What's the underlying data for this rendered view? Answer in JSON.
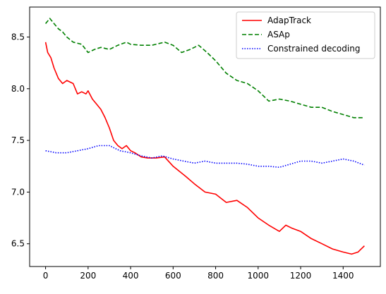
{
  "chart_data": {
    "type": "line",
    "title": "",
    "xlabel": "",
    "ylabel": "",
    "xlim": [
      -75,
      1575
    ],
    "ylim": [
      6.28,
      8.79
    ],
    "xticks": [
      0,
      200,
      400,
      600,
      800,
      1000,
      1200,
      1400
    ],
    "yticks": [
      6.5,
      7.0,
      7.5,
      8.0,
      8.5
    ],
    "xtick_labels": [
      "0",
      "200",
      "400",
      "600",
      "800",
      "1000",
      "1200",
      "1400"
    ],
    "ytick_labels": [
      "6.5",
      "7.0",
      "7.5",
      "8.0",
      "8.5"
    ],
    "grid": false,
    "legend_position": "top-right",
    "series": [
      {
        "name": "AdapTrack",
        "color": "#ff0000",
        "linestyle": "solid",
        "x": [
          0,
          10,
          25,
          40,
          60,
          80,
          100,
          130,
          150,
          170,
          190,
          200,
          220,
          240,
          260,
          280,
          300,
          320,
          340,
          360,
          380,
          400,
          420,
          450,
          480,
          520,
          560,
          600,
          630,
          660,
          700,
          750,
          800,
          850,
          900,
          950,
          1000,
          1050,
          1100,
          1130,
          1160,
          1200,
          1250,
          1300,
          1350,
          1400,
          1440,
          1470,
          1500
        ],
        "y": [
          8.45,
          8.35,
          8.3,
          8.2,
          8.1,
          8.05,
          8.08,
          8.05,
          7.95,
          7.97,
          7.95,
          7.98,
          7.9,
          7.85,
          7.8,
          7.72,
          7.62,
          7.5,
          7.45,
          7.42,
          7.45,
          7.4,
          7.38,
          7.34,
          7.33,
          7.33,
          7.34,
          7.25,
          7.2,
          7.15,
          7.08,
          7.0,
          6.98,
          6.9,
          6.92,
          6.85,
          6.75,
          6.68,
          6.62,
          6.68,
          6.65,
          6.62,
          6.55,
          6.5,
          6.45,
          6.42,
          6.4,
          6.42,
          6.48
        ]
      },
      {
        "name": "ASAp",
        "color": "#008000",
        "linestyle": "dashed",
        "x": [
          0,
          20,
          40,
          60,
          80,
          100,
          130,
          170,
          200,
          230,
          260,
          300,
          340,
          380,
          400,
          450,
          500,
          560,
          600,
          640,
          680,
          720,
          760,
          800,
          850,
          900,
          950,
          1000,
          1050,
          1100,
          1150,
          1200,
          1250,
          1300,
          1350,
          1400,
          1450,
          1500
        ],
        "y": [
          8.63,
          8.68,
          8.63,
          8.58,
          8.55,
          8.5,
          8.45,
          8.43,
          8.35,
          8.38,
          8.4,
          8.38,
          8.42,
          8.45,
          8.43,
          8.42,
          8.42,
          8.45,
          8.42,
          8.35,
          8.38,
          8.42,
          8.35,
          8.27,
          8.15,
          8.08,
          8.05,
          7.98,
          7.88,
          7.9,
          7.88,
          7.85,
          7.82,
          7.82,
          7.78,
          7.75,
          7.72,
          7.72
        ]
      },
      {
        "name": "Constrained decoding",
        "color": "#0000ff",
        "linestyle": "dotted",
        "x": [
          0,
          50,
          100,
          150,
          200,
          250,
          300,
          350,
          400,
          450,
          500,
          550,
          600,
          650,
          700,
          750,
          800,
          850,
          900,
          950,
          1000,
          1050,
          1100,
          1150,
          1200,
          1250,
          1300,
          1350,
          1400,
          1450,
          1500
        ],
        "y": [
          7.4,
          7.38,
          7.38,
          7.4,
          7.42,
          7.45,
          7.45,
          7.4,
          7.38,
          7.35,
          7.33,
          7.35,
          7.32,
          7.3,
          7.28,
          7.3,
          7.28,
          7.28,
          7.28,
          7.27,
          7.25,
          7.25,
          7.24,
          7.27,
          7.3,
          7.3,
          7.28,
          7.3,
          7.32,
          7.3,
          7.26
        ]
      }
    ]
  }
}
